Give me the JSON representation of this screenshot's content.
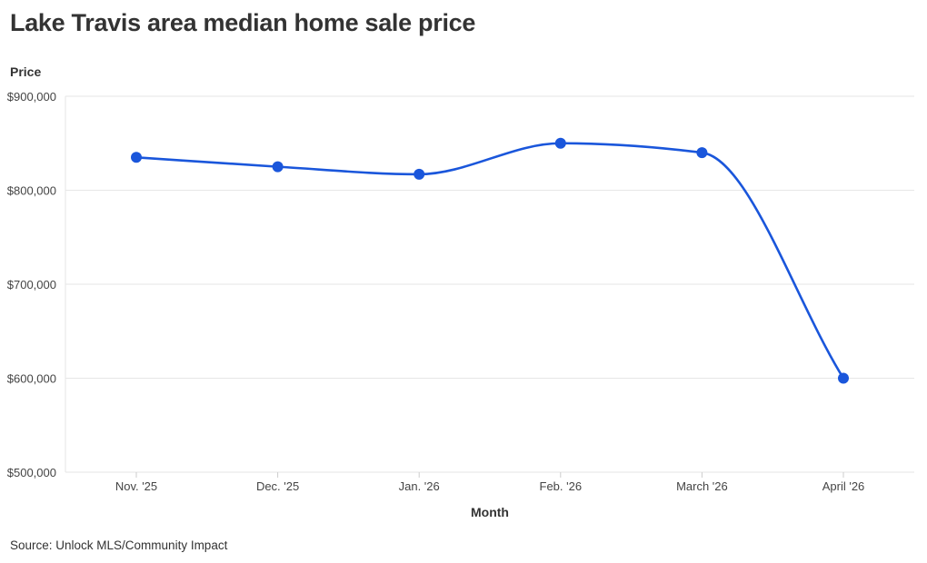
{
  "header": {
    "title": "Lake Travis area median home sale price"
  },
  "footer": {
    "source": "Source: Unlock MLS/Community Impact"
  },
  "colors": {
    "series": "#1a56db",
    "grid": "#e6e6e6",
    "text": "#333333"
  },
  "chart_data": {
    "type": "line",
    "title": "Lake Travis area median home sale price",
    "xlabel": "Month",
    "ylabel": "Price",
    "categories": [
      "Nov. '25",
      "Dec. '25",
      "Jan. '26",
      "Feb. '26",
      "March '26",
      "April '26"
    ],
    "series": [
      {
        "values": [
          835000,
          825000,
          817000,
          850000,
          840000,
          600000
        ]
      }
    ],
    "ylim": [
      500000,
      900000
    ],
    "yticks": [
      500000,
      600000,
      700000,
      800000,
      900000
    ],
    "ytick_labels": [
      "$500,000",
      "$600,000",
      "$700,000",
      "$800,000",
      "$900,000"
    ],
    "grid": true,
    "smooth": true,
    "markers": true,
    "legend": "none"
  }
}
